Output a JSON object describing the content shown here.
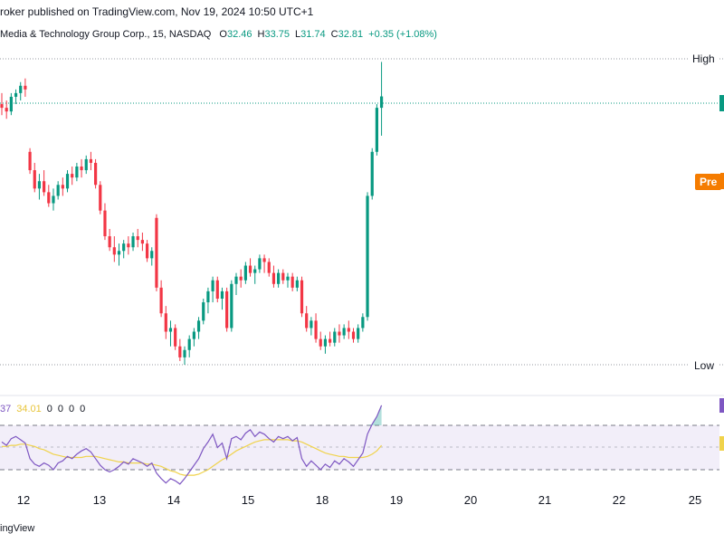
{
  "header": {
    "published": "roker published on TradingView.com, Nov 19, 2024 10:50 UTC+1"
  },
  "symbol": {
    "name": "Media & Technology Group Corp., 15, NASDAQ",
    "o_label": "O",
    "o_value": "32.46",
    "h_label": "H",
    "h_value": "33.75",
    "l_label": "L",
    "l_value": "31.74",
    "c_label": "C",
    "c_value": "32.81",
    "change": "+0.35 (+1.08%)"
  },
  "price_tags": {
    "high": "High",
    "low": "Low",
    "pre": "Pre"
  },
  "rsi": {
    "v1": "37",
    "v2": "34.01",
    "z1": "0",
    "z2": "0",
    "z3": "0",
    "z4": "0"
  },
  "footer": {
    "brand": "ingView"
  },
  "colors": {
    "up": "#089981",
    "down": "#f23645",
    "rsi_line": "#7e57c2",
    "rsi_ma": "#f0d34b",
    "rsi_band": "#ede7f6",
    "pre_tag": "#f57c00"
  },
  "chart_data": [
    {
      "type": "candlestick",
      "xlabel": "",
      "ylabel": "",
      "ylim": [
        25.5,
        34.5
      ],
      "x_ticks": [
        "12",
        "13",
        "14",
        "15",
        "18",
        "19",
        "20",
        "21",
        "22",
        "25"
      ],
      "reference_levels": {
        "High": 33.75,
        "Low": 25.5,
        "last": 32.81
      },
      "series": [
        {
          "candles": [
            [
              32.6,
              32.9,
              32.3,
              32.5
            ],
            [
              32.5,
              32.7,
              32.2,
              32.4
            ],
            [
              32.4,
              32.9,
              32.3,
              32.8
            ],
            [
              32.8,
              33.0,
              32.6,
              32.9
            ],
            [
              32.9,
              33.2,
              32.7,
              33.1
            ],
            [
              33.1,
              33.3,
              32.8,
              33.0
            ],
            [
              31.3,
              31.4,
              30.7,
              30.8
            ],
            [
              30.8,
              31.0,
              30.2,
              30.3
            ],
            [
              30.3,
              30.7,
              30.0,
              30.5
            ],
            [
              30.5,
              30.8,
              30.1,
              30.2
            ],
            [
              30.2,
              30.4,
              29.8,
              29.9
            ],
            [
              29.9,
              30.3,
              29.7,
              30.1
            ],
            [
              30.1,
              30.5,
              30.0,
              30.4
            ],
            [
              30.4,
              30.6,
              30.1,
              30.3
            ],
            [
              30.3,
              30.8,
              30.2,
              30.7
            ],
            [
              30.7,
              30.9,
              30.4,
              30.6
            ],
            [
              30.6,
              31.0,
              30.5,
              30.9
            ],
            [
              30.9,
              31.1,
              30.6,
              30.8
            ],
            [
              30.8,
              31.2,
              30.7,
              31.1
            ],
            [
              31.1,
              31.3,
              30.8,
              31.0
            ],
            [
              31.0,
              31.1,
              30.3,
              30.4
            ],
            [
              30.4,
              30.5,
              29.6,
              29.7
            ],
            [
              29.7,
              29.9,
              28.9,
              29.0
            ],
            [
              29.0,
              29.2,
              28.6,
              28.7
            ],
            [
              28.7,
              29.0,
              28.3,
              28.5
            ],
            [
              28.5,
              28.8,
              28.2,
              28.6
            ],
            [
              28.6,
              28.9,
              28.4,
              28.8
            ],
            [
              28.8,
              29.0,
              28.5,
              28.7
            ],
            [
              28.7,
              29.1,
              28.6,
              29.0
            ],
            [
              29.0,
              29.2,
              28.7,
              28.9
            ],
            [
              28.9,
              29.1,
              28.6,
              28.8
            ],
            [
              28.8,
              28.9,
              28.3,
              28.4
            ],
            [
              28.4,
              28.7,
              28.2,
              28.6
            ],
            [
              29.5,
              29.6,
              27.5,
              27.6
            ],
            [
              27.6,
              27.8,
              26.8,
              26.9
            ],
            [
              26.9,
              27.1,
              26.2,
              26.4
            ],
            [
              26.4,
              26.7,
              26.0,
              26.5
            ],
            [
              26.5,
              26.6,
              25.9,
              26.0
            ],
            [
              26.0,
              26.2,
              25.6,
              25.7
            ],
            [
              25.7,
              26.0,
              25.5,
              25.9
            ],
            [
              25.9,
              26.3,
              25.7,
              26.2
            ],
            [
              26.2,
              26.5,
              26.0,
              26.4
            ],
            [
              26.4,
              26.8,
              26.2,
              26.7
            ],
            [
              26.7,
              27.3,
              26.6,
              27.2
            ],
            [
              27.2,
              27.6,
              26.9,
              27.5
            ],
            [
              27.5,
              27.9,
              27.2,
              27.8
            ],
            [
              27.8,
              27.9,
              27.2,
              27.3
            ],
            [
              27.3,
              27.6,
              27.0,
              27.5
            ],
            [
              27.5,
              27.6,
              26.4,
              26.5
            ],
            [
              26.5,
              27.8,
              26.4,
              27.7
            ],
            [
              27.7,
              28.0,
              27.4,
              27.9
            ],
            [
              27.9,
              28.1,
              27.6,
              27.8
            ],
            [
              27.8,
              28.3,
              27.7,
              28.2
            ],
            [
              28.2,
              28.4,
              27.9,
              28.0
            ],
            [
              28.0,
              28.2,
              27.7,
              28.1
            ],
            [
              28.1,
              28.5,
              28.0,
              28.4
            ],
            [
              28.4,
              28.5,
              28.0,
              28.3
            ],
            [
              28.3,
              28.4,
              27.9,
              28.0
            ],
            [
              28.0,
              28.2,
              27.6,
              27.7
            ],
            [
              27.7,
              28.1,
              27.6,
              28.0
            ],
            [
              28.0,
              28.1,
              27.7,
              27.8
            ],
            [
              27.8,
              28.0,
              27.6,
              27.9
            ],
            [
              27.9,
              28.0,
              27.5,
              27.6
            ],
            [
              27.6,
              27.9,
              27.5,
              27.8
            ],
            [
              27.8,
              27.9,
              26.8,
              26.9
            ],
            [
              26.9,
              27.1,
              26.4,
              26.5
            ],
            [
              26.5,
              26.8,
              26.3,
              26.7
            ],
            [
              26.7,
              26.9,
              26.1,
              26.2
            ],
            [
              26.2,
              26.4,
              25.9,
              26.0
            ],
            [
              26.0,
              26.3,
              25.8,
              26.2
            ],
            [
              26.2,
              26.4,
              26.0,
              26.1
            ],
            [
              26.1,
              26.5,
              26.0,
              26.4
            ],
            [
              26.4,
              26.6,
              26.1,
              26.3
            ],
            [
              26.3,
              26.6,
              26.2,
              26.5
            ],
            [
              26.5,
              26.7,
              26.2,
              26.4
            ],
            [
              26.4,
              26.5,
              26.1,
              26.2
            ],
            [
              26.2,
              26.6,
              26.1,
              26.5
            ],
            [
              26.5,
              26.9,
              26.4,
              26.8
            ],
            [
              26.8,
              30.2,
              26.7,
              30.1
            ],
            [
              30.1,
              31.4,
              30.0,
              31.3
            ],
            [
              31.3,
              32.6,
              31.2,
              32.5
            ],
            [
              32.5,
              33.75,
              31.74,
              32.81
            ]
          ]
        }
      ]
    },
    {
      "type": "line",
      "ylim": [
        20,
        80
      ],
      "bands": [
        30,
        50,
        70
      ],
      "series": [
        {
          "values": [
            55,
            52,
            58,
            60,
            57,
            54,
            40,
            35,
            33,
            36,
            34,
            30,
            36,
            38,
            42,
            40,
            44,
            47,
            49,
            46,
            40,
            34,
            30,
            28,
            30,
            33,
            37,
            35,
            40,
            38,
            36,
            33,
            36,
            27,
            22,
            18,
            22,
            20,
            17,
            22,
            28,
            34,
            40,
            49,
            55,
            62,
            50,
            54,
            40,
            58,
            60,
            57,
            63,
            66,
            60,
            64,
            62,
            58,
            55,
            60,
            58,
            60,
            56,
            59,
            40,
            33,
            38,
            34,
            30,
            35,
            32,
            38,
            35,
            40,
            37,
            33,
            39,
            45,
            62,
            71,
            78,
            88
          ]
        },
        {
          "values": [
            51,
            51,
            52,
            52,
            53,
            53,
            52,
            51,
            49,
            48,
            46,
            44,
            43,
            42,
            41,
            41,
            41,
            41,
            42,
            42,
            42,
            41,
            40,
            39,
            38,
            37,
            37,
            36,
            36,
            36,
            36,
            35,
            35,
            34,
            33,
            31,
            29,
            28,
            26,
            25,
            25,
            25,
            26,
            28,
            30,
            33,
            36,
            39,
            41,
            44,
            47,
            49,
            51,
            53,
            55,
            56,
            57,
            57,
            57,
            57,
            57,
            57,
            56,
            56,
            55,
            53,
            51,
            49,
            47,
            45,
            44,
            43,
            42,
            42,
            41,
            41,
            41,
            41,
            42,
            44,
            47,
            52
          ]
        }
      ]
    }
  ]
}
